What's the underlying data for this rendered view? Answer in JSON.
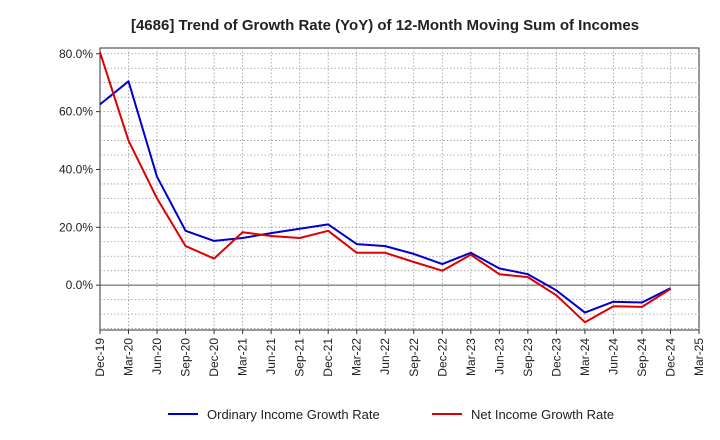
{
  "chart_data": {
    "type": "line",
    "title": "[4686]  Trend of Growth Rate (YoY) of 12-Month Moving Sum of Incomes",
    "xlabel": "",
    "ylabel": "",
    "x_ticks": [
      "Dec-19",
      "Mar-20",
      "Jun-20",
      "Sep-20",
      "Dec-20",
      "Mar-21",
      "Jun-21",
      "Sep-21",
      "Dec-21",
      "Mar-22",
      "Jun-22",
      "Sep-22",
      "Dec-22",
      "Mar-23",
      "Jun-23",
      "Sep-23",
      "Dec-23",
      "Mar-24",
      "Jun-24",
      "Sep-24",
      "Dec-24",
      "Mar-25"
    ],
    "y_ticks": [
      0,
      20,
      40,
      60,
      80
    ],
    "y_tick_labels": [
      "0.0%",
      "20.0%",
      "40.0%",
      "60.0%",
      "80.0%"
    ],
    "ylim": [
      -15.5,
      82
    ],
    "grid": true,
    "legend_position": "bottom",
    "series": [
      {
        "name": "Ordinary Income Growth Rate",
        "color": "#0000cc",
        "values": [
          62.5,
          70.5,
          37.5,
          18.8,
          15.3,
          16.3,
          18.0,
          19.5,
          21.0,
          14.2,
          13.5,
          10.8,
          7.3,
          11.2,
          5.8,
          3.8,
          -1.8,
          -9.5,
          -5.7,
          -6.0,
          -1.0
        ]
      },
      {
        "name": "Net Income Growth Rate",
        "color": "#dd0000",
        "values": [
          80.5,
          50.0,
          30.0,
          13.5,
          9.2,
          18.3,
          17.0,
          16.3,
          18.8,
          11.2,
          11.2,
          8.0,
          5.0,
          10.5,
          3.8,
          2.8,
          -3.5,
          -12.8,
          -7.3,
          -7.5,
          -1.3
        ]
      }
    ]
  }
}
